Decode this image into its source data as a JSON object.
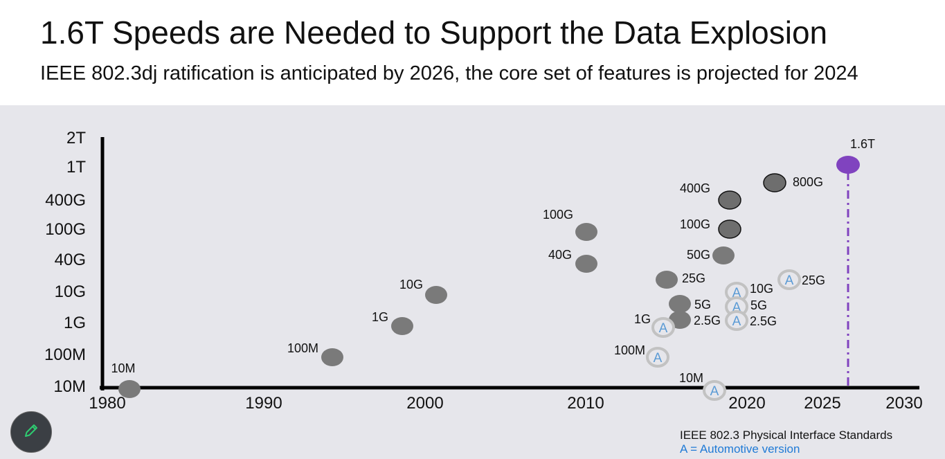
{
  "header": {
    "title": "1.6T Speeds are Needed to Support the Data Explosion",
    "subtitle": "IEEE 802.3dj ratification is anticipated by 2026, the core set of features is projected for 2024"
  },
  "legend": {
    "line1": "IEEE 802.3 Physical Interface Standards",
    "line2": "A = Automotive version"
  },
  "toolbar": {
    "edit_icon": "pencil-icon"
  },
  "colors": {
    "standard": "#7a7a7a",
    "outlined": "#6e6e6e",
    "automotive_ring": "#c2c2c2",
    "automotive_text": "#5b9bd5",
    "highlight": "#8043bf",
    "legend_auto": "#1f7ad6",
    "background": "#e6e6eb"
  },
  "chart_data": {
    "type": "scatter",
    "xlim": [
      1980,
      2030
    ],
    "x_ticks": [
      "1980",
      "1990",
      "2000",
      "2010",
      "2020",
      "2025",
      "2030"
    ],
    "y_ticks": [
      "10M",
      "100M",
      "1G",
      "10G",
      "40G",
      "100G",
      "400G",
      "1T",
      "2T"
    ],
    "grid": false,
    "points": [
      {
        "year": 1982,
        "speed": "10M",
        "label": "10M",
        "kind": "standard"
      },
      {
        "year": 1994,
        "speed": "100M",
        "label": "100M",
        "kind": "standard"
      },
      {
        "year": 1998,
        "speed": "1G",
        "label": "1G",
        "kind": "standard"
      },
      {
        "year": 2001,
        "speed": "10G",
        "label": "10G",
        "kind": "standard"
      },
      {
        "year": 2010,
        "speed": "40G",
        "label": "40G",
        "kind": "standard"
      },
      {
        "year": 2010,
        "speed": "100G",
        "label": "100G",
        "kind": "standard"
      },
      {
        "year": 2015,
        "speed": "25G",
        "label": "25G",
        "kind": "standard"
      },
      {
        "year": 2016,
        "speed": "5G",
        "label": "5G",
        "kind": "standard"
      },
      {
        "year": 2016,
        "speed": "2.5G",
        "label": "2.5G",
        "kind": "standard"
      },
      {
        "year": 2016,
        "speed": "50G",
        "label": "50G",
        "kind": "standard"
      },
      {
        "year": 2017,
        "speed": "100G",
        "label": "100G",
        "kind": "outlined"
      },
      {
        "year": 2017,
        "speed": "400G",
        "label": "400G",
        "kind": "outlined"
      },
      {
        "year": 2022,
        "speed": "800G",
        "label": "800G",
        "kind": "outlined"
      },
      {
        "year": 2026,
        "speed": "1.6T",
        "label": "1.6T",
        "kind": "highlight"
      },
      {
        "year": 2015,
        "speed": "1G",
        "label": "1G",
        "kind": "automotive",
        "marker": "A"
      },
      {
        "year": 2015,
        "speed": "100M",
        "label": "100M",
        "kind": "automotive",
        "marker": "A"
      },
      {
        "year": 2018,
        "speed": "10M",
        "label": "10M",
        "kind": "automotive",
        "marker": "A"
      },
      {
        "year": 2019,
        "speed": "10G",
        "label": "10G",
        "kind": "automotive",
        "marker": "A"
      },
      {
        "year": 2019,
        "speed": "5G",
        "label": "5G",
        "kind": "automotive",
        "marker": "A"
      },
      {
        "year": 2019,
        "speed": "2.5G",
        "label": "2.5G",
        "kind": "automotive",
        "marker": "A"
      },
      {
        "year": 2022,
        "speed": "25G",
        "label": "25G",
        "kind": "automotive",
        "marker": "A"
      }
    ]
  }
}
